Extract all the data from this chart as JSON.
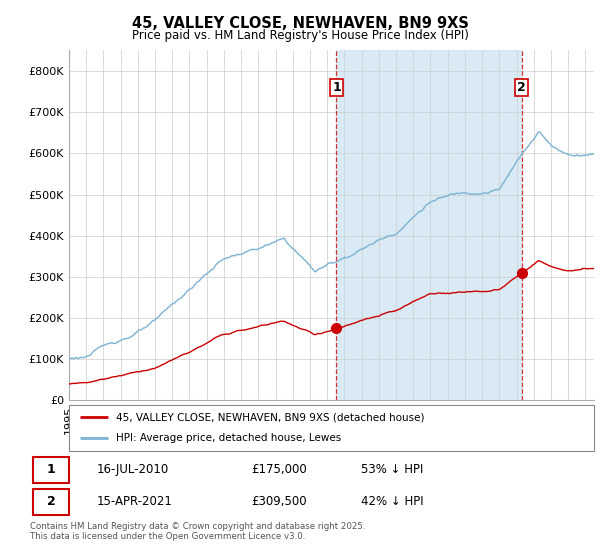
{
  "title_line1": "45, VALLEY CLOSE, NEWHAVEN, BN9 9XS",
  "title_line2": "Price paid vs. HM Land Registry's House Price Index (HPI)",
  "ytick_values": [
    0,
    100000,
    200000,
    300000,
    400000,
    500000,
    600000,
    700000,
    800000
  ],
  "ylim": [
    0,
    850000
  ],
  "xlim_start": 1995.0,
  "xlim_end": 2025.5,
  "hpi_color": "#7ab3d4",
  "hpi_fill_color": "#daeaf5",
  "price_color": "#cc0000",
  "marker1_x": 2010.54,
  "marker1_y": 175000,
  "marker2_x": 2021.29,
  "marker2_y": 309500,
  "legend_line1": "45, VALLEY CLOSE, NEWHAVEN, BN9 9XS (detached house)",
  "legend_line2": "HPI: Average price, detached house, Lewes",
  "table_row1": [
    "1",
    "16-JUL-2010",
    "£175,000",
    "53% ↓ HPI"
  ],
  "table_row2": [
    "2",
    "15-APR-2021",
    "£309,500",
    "42% ↓ HPI"
  ],
  "footer": "Contains HM Land Registry data © Crown copyright and database right 2025.\nThis data is licensed under the Open Government Licence v3.0.",
  "dashed_line1_x": 2010.54,
  "dashed_line2_x": 2021.29,
  "background_color": "#ffffff",
  "grid_color": "#cccccc"
}
